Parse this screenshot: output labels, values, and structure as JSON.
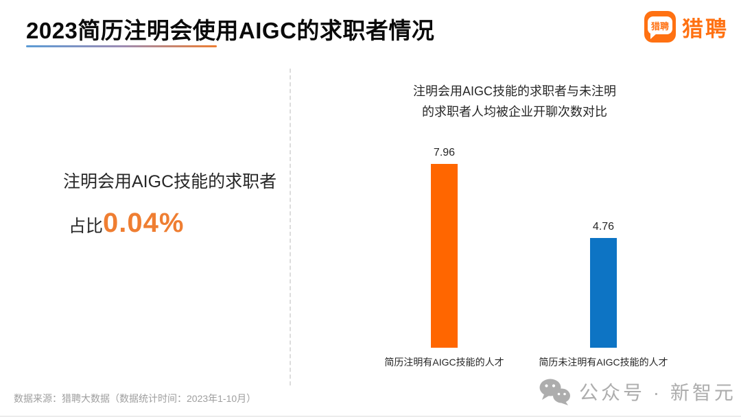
{
  "header": {
    "title": "2023简历注明会使用AIGC的求职者情况",
    "logo": {
      "icon_text": "猎聘",
      "name": "猎聘",
      "brand_color": "#FF7112"
    }
  },
  "left_panel": {
    "headline": "注明会用AIGC技能的求职者",
    "stat_prefix": "占比",
    "stat_value": "0.04%",
    "stat_color": "#EF7E32"
  },
  "chart_data": {
    "type": "bar",
    "title": "注明会用AIGC技能的求职者与未注明的求职者人均被企业开聊次数对比",
    "title_lines": [
      "注明会用AIGC技能的求职者与未注明",
      "的求职者人均被企业开聊次数对比"
    ],
    "categories": [
      "简历注明有AIGC技能的人才",
      "简历未注明有AIGC技能的人才"
    ],
    "values": [
      7.96,
      4.76
    ],
    "value_labels": [
      "7.96",
      "4.76"
    ],
    "bar_colors": [
      "#FF6600",
      "#0D74C4"
    ],
    "ylim": [
      0,
      9
    ],
    "grid": false,
    "legend": "none",
    "xlabel": "",
    "ylabel": ""
  },
  "footer": {
    "source": "数据来源：猎聘大数据（数据统计时间：2023年1-10月）",
    "watermark": "公众号 · 新智元"
  }
}
